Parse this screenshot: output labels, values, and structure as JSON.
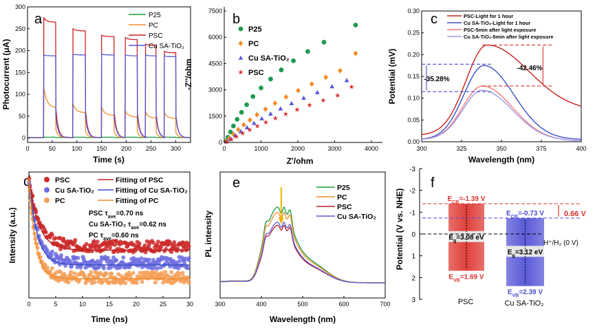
{
  "chart_data": [
    {
      "id": "a",
      "panel_letter": "a",
      "type": "line",
      "xlabel": "Time (s)",
      "ylabel": "Photocurrent (μA)",
      "xlim": [
        0,
        330
      ],
      "ylim": [
        -10,
        300
      ],
      "xticks": [
        "0",
        "50",
        "100",
        "150",
        "200",
        "250",
        "300"
      ],
      "yticks": [
        "0",
        "50",
        "100",
        "150",
        "200",
        "250",
        "300"
      ],
      "on_intervals": [
        [
          33,
          57
        ],
        [
          92,
          117
        ],
        [
          150,
          175
        ],
        [
          198,
          222
        ],
        [
          239,
          260
        ],
        [
          277,
          300
        ]
      ],
      "series": [
        {
          "name": "P25",
          "color": "#1a9a3a",
          "peak": [
            2,
            2,
            2,
            2,
            2,
            2
          ],
          "steady": [
            2,
            2,
            2,
            2,
            2,
            2
          ]
        },
        {
          "name": "PC",
          "color": "#f28c28",
          "peak": [
            115,
            78,
            70,
            62,
            60,
            58
          ],
          "steady": [
            70,
            58,
            52,
            48,
            46,
            45
          ]
        },
        {
          "name": "PSC",
          "color": "#c8201e",
          "peak": [
            275,
            250,
            235,
            230,
            215,
            198
          ],
          "steady": [
            265,
            245,
            232,
            225,
            212,
            195
          ]
        },
        {
          "name": "Cu SA-TiO2",
          "color": "#5555d8",
          "peak": [
            190,
            192,
            192,
            190,
            190,
            188
          ],
          "steady": [
            188,
            190,
            190,
            188,
            188,
            186
          ]
        }
      ],
      "legend": [
        "P25",
        "PC",
        "PSC",
        "Cu SA-TiO₂"
      ]
    },
    {
      "id": "b",
      "panel_letter": "b",
      "type": "scatter",
      "xlabel": "Z'/ohm",
      "ylabel": "-Z''/ohm",
      "xlim": [
        0,
        4300
      ],
      "ylim": [
        0,
        7500
      ],
      "xticks": [
        "0",
        "1000",
        "2000",
        "3000",
        "4000"
      ],
      "yticks": [
        "0",
        "1500",
        "3000",
        "4500",
        "6000",
        "7500"
      ],
      "series": [
        {
          "name": "P25",
          "color": "#1e9a4e",
          "marker": "circle",
          "x": [
            40,
            100,
            170,
            250,
            350,
            470,
            610,
            780,
            1000,
            1260,
            1550,
            1880,
            2270,
            2710,
            3570
          ],
          "y": [
            80,
            300,
            600,
            940,
            1320,
            1720,
            2150,
            2620,
            3110,
            3620,
            4140,
            4660,
            5190,
            5720,
            6700
          ]
        },
        {
          "name": "PC",
          "color": "#f28c28",
          "marker": "diamond",
          "x": [
            50,
            140,
            250,
            380,
            530,
            700,
            890,
            1120,
            1380,
            1680,
            2010,
            2380,
            2760,
            3150,
            3570
          ],
          "y": [
            60,
            240,
            470,
            730,
            1000,
            1280,
            1580,
            1900,
            2240,
            2590,
            2960,
            3340,
            3720,
            4100,
            5080
          ]
        },
        {
          "name": "Cu SA-TiO2",
          "color": "#5a5ad8",
          "marker": "triangle",
          "x": [
            60,
            170,
            300,
            450,
            620,
            810,
            1020,
            1260,
            1530,
            1830,
            2160,
            2530,
            2930,
            3330
          ],
          "y": [
            50,
            200,
            400,
            620,
            860,
            1110,
            1370,
            1640,
            1930,
            2230,
            2540,
            2860,
            3200,
            3550
          ]
        },
        {
          "name": "PSC",
          "color": "#d9302e",
          "marker": "star",
          "x": [
            70,
            190,
            330,
            500,
            690,
            900,
            1130,
            1390,
            1670,
            1980,
            2320,
            2690,
            3080,
            3460
          ],
          "y": [
            40,
            170,
            330,
            520,
            720,
            930,
            1150,
            1380,
            1620,
            1870,
            2130,
            2400,
            2680,
            3170
          ]
        }
      ],
      "legend": [
        "P25",
        "PC",
        "Cu SA-TiO₂",
        "PSC"
      ]
    },
    {
      "id": "c",
      "panel_letter": "c",
      "type": "line",
      "xlabel": "Wavelength (nm)",
      "ylabel": "Potential (mV)",
      "xlim": [
        300,
        400
      ],
      "ylim": [
        0,
        0.3
      ],
      "xticks": [
        "300",
        "325",
        "350",
        "375",
        "400"
      ],
      "yticks": [
        "0.00",
        "0.05",
        "0.10",
        "0.15",
        "0.20",
        "0.25",
        "0.30"
      ],
      "series": [
        {
          "name": "PSC-Light for 1 hour",
          "color": "#c8201e",
          "peak_x": 341,
          "peak_y": 0.222,
          "left_y": 0.015,
          "right_y": 0.07
        },
        {
          "name": "Cu SA-TiO2-Light for 1 hour",
          "color": "#3b4fc4",
          "peak_x": 339,
          "peak_y": 0.175,
          "left_y": 0.005,
          "right_y": 0.005
        },
        {
          "name": "PSC-5min after light exposure",
          "color": "#f07a7a",
          "peak_x": 338,
          "peak_y": 0.128,
          "left_y": 0.005,
          "right_y": 0.002
        },
        {
          "name": "Cu SA-TiO2-5min after light exposure",
          "color": "#9a9ae8",
          "peak_x": 338,
          "peak_y": 0.118,
          "left_y": 0.005,
          "right_y": 0.002
        }
      ],
      "legend": [
        "PSC-Light for 1 hour",
        "Cu SA-TiO₂-Light for 1 hour",
        "PSC-5min after light exposure",
        "Cu SA-TiO₂-5min after light exposure"
      ],
      "annotations": [
        {
          "text": "-42.46%",
          "color": "#111111"
        },
        {
          "text": "-35.28%",
          "color": "#111111"
        }
      ],
      "guide_levels": {
        "red_high": 0.222,
        "red_low": 0.128,
        "blue_high": 0.178,
        "blue_low": 0.115
      }
    },
    {
      "id": "d",
      "panel_letter": "d",
      "type": "scatter",
      "xlabel": "Time (ns)",
      "ylabel": "Intensity (a.u.)",
      "xlim": [
        0,
        30
      ],
      "xticks": [
        "0",
        "5",
        "10",
        "15",
        "20",
        "25",
        "30"
      ],
      "series": [
        {
          "name": "PSC",
          "color": "#cc2b2b",
          "baseline": 0.4,
          "decay": 1.9,
          "noise": 0.05
        },
        {
          "name": "Cu SA-TiO2",
          "color": "#6e6ee0",
          "baseline": 0.26,
          "decay": 1.6,
          "noise": 0.05
        },
        {
          "name": "PC",
          "color": "#f5a05a",
          "baseline": 0.13,
          "decay": 1.3,
          "noise": 0.05
        }
      ],
      "fits": [
        {
          "name": "Fitting of PSC",
          "color": "#c0201e"
        },
        {
          "name": "Fitting of Cu SA-TiO2",
          "color": "#3b4fc4"
        },
        {
          "name": "Fitting of  PC",
          "color": "#f28c28"
        }
      ],
      "legend_left": [
        "PSC",
        "Cu SA-TiO₂",
        "PC"
      ],
      "legend_right": [
        "Fitting of PSC",
        "Fitting of Cu SA-TiO₂",
        "Fitting of  PC"
      ],
      "annotations": [
        {
          "label": "PSC τ",
          "sub": "ave",
          "value": "=0.70 ns"
        },
        {
          "label": "Cu SA-TiO₂ τ",
          "sub": "ave",
          "value": "=0.62 ns"
        },
        {
          "label": "PC τ",
          "sub": "ave",
          "value": "=0.60 ns"
        }
      ]
    },
    {
      "id": "e",
      "panel_letter": "e",
      "type": "line",
      "xlabel": "Wavelength (nm)",
      "ylabel": "PL intensity",
      "xlim": [
        300,
        700
      ],
      "xticks": [
        "300",
        "400",
        "500",
        "600",
        "700"
      ],
      "series": [
        {
          "name": "P25",
          "color": "#1a9a3a",
          "scale": 1.0
        },
        {
          "name": "PC",
          "color": "#f28c28",
          "scale": 0.93
        },
        {
          "name": "PSC",
          "color": "#b01e2e",
          "scale": 0.76
        },
        {
          "name": "Cu SA-TiO2",
          "color": "#5a5ad8",
          "scale": 0.8
        }
      ],
      "legend": [
        "P25",
        "PC",
        "PSC",
        "Cu SA-TiO₂"
      ]
    },
    {
      "id": "f",
      "panel_letter": "f",
      "type": "bar",
      "ylabel": "Potential (V vs. NHE)",
      "ylim": [
        3,
        -3
      ],
      "yticks": [
        "-3",
        "-2",
        "-1",
        "0",
        "1",
        "2",
        "3"
      ],
      "categories": [
        "PSC",
        "Cu SA-TiO₂"
      ],
      "bands": [
        {
          "name": "PSC",
          "ecb": -1.39,
          "evb": 1.69,
          "eg": 3.08,
          "color": "#e0403a",
          "text_color": "#d8302b",
          "ecb_label": "E",
          "ecb_sub": "CB",
          "ecb_value": "=-1.39 V",
          "evb_label": "E",
          "evb_sub": "VB",
          "evb_value": "=1.69 V",
          "eg_label": "E",
          "eg_sub": "g",
          "eg_value": "=3.08 eV"
        },
        {
          "name": "Cu SA-TiO2",
          "ecb": -0.73,
          "evb": 2.39,
          "eg": 3.12,
          "color": "#5a5ad8",
          "text_color": "#4a4ad0",
          "ecb_label": "E",
          "ecb_sub": "CB",
          "ecb_value": "=-0.73 V",
          "evb_label": "E",
          "evb_sub": "VB",
          "evb_value": "=2.39 V",
          "eg_label": "E",
          "eg_sub": "g",
          "eg_value": "=3.12 eV"
        }
      ],
      "offset_label": "0.66 V",
      "offset_color": "#d8302b",
      "reference_label": "H⁺/H₂ (0 V)",
      "reference_value": 0
    }
  ]
}
